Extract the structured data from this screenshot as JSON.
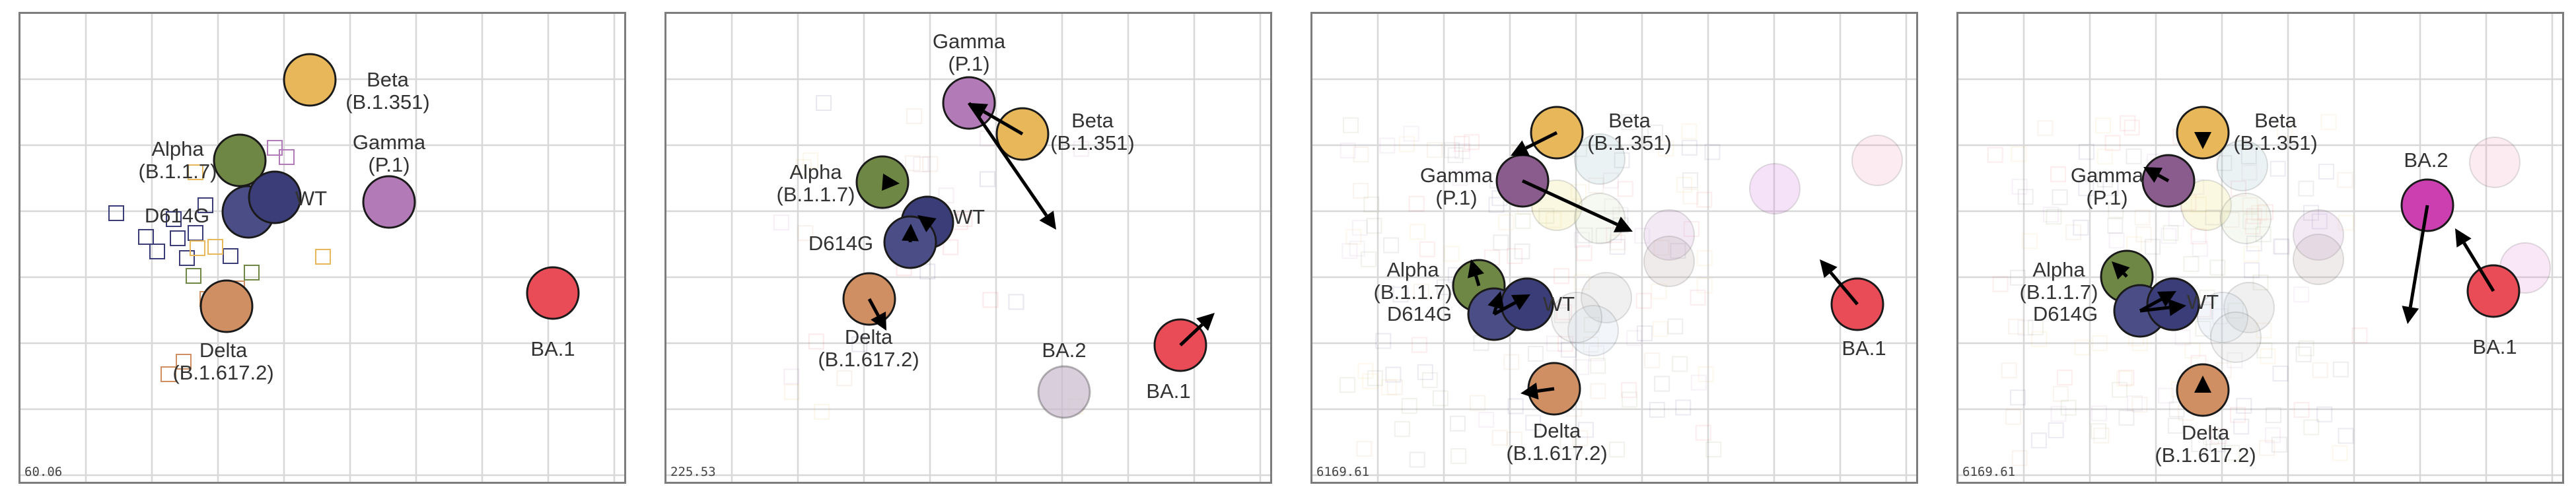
{
  "panels": [
    {
      "stress": "60.06",
      "viruses": [
        {
          "id": "beta",
          "label": [
            "Beta",
            "(B.1.351)"
          ],
          "color": "#e7b75a",
          "faded": false
        },
        {
          "id": "alpha",
          "label": [
            "Alpha",
            "(B.1.1.7)"
          ],
          "color": "#6f8744",
          "faded": false
        },
        {
          "id": "gamma",
          "label": [
            "Gamma",
            "(P.1)"
          ],
          "color": "#b27bb7",
          "faded": false
        },
        {
          "id": "d614g",
          "label": [
            "D614G"
          ],
          "color": "#4b4e86",
          "faded": false
        },
        {
          "id": "wt",
          "label": [
            "WT"
          ],
          "color": "#3a3d78",
          "faded": false
        },
        {
          "id": "delta",
          "label": [
            "Delta",
            "(B.1.617.2)"
          ],
          "color": "#d08f62",
          "faded": false
        },
        {
          "id": "ba1",
          "label": [
            "BA.1"
          ],
          "color": "#ea4c57",
          "faded": false
        }
      ]
    },
    {
      "stress": "225.53",
      "viruses": [
        {
          "id": "gamma",
          "label": [
            "Gamma",
            "(P.1)"
          ],
          "color": "#b27bb7",
          "faded": false
        },
        {
          "id": "beta",
          "label": [
            "Beta",
            "(B.1.351)"
          ],
          "color": "#e7b75a",
          "faded": false
        },
        {
          "id": "alpha",
          "label": [
            "Alpha",
            "(B.1.1.7)"
          ],
          "color": "#6f8744",
          "faded": false
        },
        {
          "id": "wt",
          "label": [
            "WT"
          ],
          "color": "#3a3d78",
          "faded": false
        },
        {
          "id": "d614g",
          "label": [
            "D614G"
          ],
          "color": "#4b4e86",
          "faded": false
        },
        {
          "id": "delta",
          "label": [
            "Delta",
            "(B.1.617.2)"
          ],
          "color": "#d08f62",
          "faded": false
        },
        {
          "id": "ba2",
          "label": [
            "BA.2"
          ],
          "color": "#c9b9cd",
          "faded": true
        },
        {
          "id": "ba1",
          "label": [
            "BA.1"
          ],
          "color": "#ea4c57",
          "faded": false
        }
      ]
    },
    {
      "stress": "6169.61",
      "viruses": [
        {
          "id": "beta",
          "label": [
            "Beta",
            "(B.1.351)"
          ],
          "color": "#e7b75a",
          "faded": false
        },
        {
          "id": "gamma",
          "label": [
            "Gamma",
            "(P.1)"
          ],
          "color": "#8a5b8d",
          "faded": false
        },
        {
          "id": "alpha",
          "label": [
            "Alpha",
            "(B.1.1.7)"
          ],
          "color": "#6f8744",
          "faded": false
        },
        {
          "id": "d614g",
          "label": [
            "D614G"
          ],
          "color": "#4b4e86",
          "faded": false
        },
        {
          "id": "wt",
          "label": [
            "WT"
          ],
          "color": "#3a3d78",
          "faded": false
        },
        {
          "id": "delta",
          "label": [
            "Delta",
            "(B.1.617.2)"
          ],
          "color": "#d08f62",
          "faded": false
        },
        {
          "id": "ba1",
          "label": [
            "BA.1"
          ],
          "color": "#ea4c57",
          "faded": false
        }
      ]
    },
    {
      "stress": "6169.61",
      "viruses": [
        {
          "id": "beta",
          "label": [
            "Beta",
            "(B.1.351)"
          ],
          "color": "#e7b75a",
          "faded": false
        },
        {
          "id": "gamma",
          "label": [
            "Gamma",
            "(P.1)"
          ],
          "color": "#8a5b8d",
          "faded": false
        },
        {
          "id": "ba2",
          "label": [
            "BA.2"
          ],
          "color": "#cc3fb0",
          "faded": false
        },
        {
          "id": "alpha",
          "label": [
            "Alpha",
            "(B.1.1.7)"
          ],
          "color": "#6f8744",
          "faded": false
        },
        {
          "id": "d614g",
          "label": [
            "D614G"
          ],
          "color": "#4b4e86",
          "faded": false
        },
        {
          "id": "wt",
          "label": [
            "WT"
          ],
          "color": "#3a3d78",
          "faded": false
        },
        {
          "id": "delta",
          "label": [
            "Delta",
            "(B.1.617.2)"
          ],
          "color": "#d08f62",
          "faded": false
        },
        {
          "id": "ba1",
          "label": [
            "BA.1"
          ],
          "color": "#ea4c57",
          "faded": false
        }
      ]
    }
  ]
}
